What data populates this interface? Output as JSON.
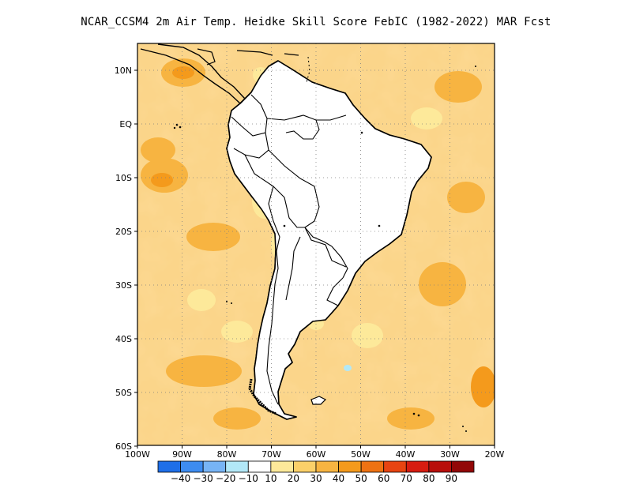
{
  "title": "NCAR_CCSM4  2m Air Temp. Heidke Skill Score FebIC (1982-2022) MAR Fcst",
  "lat_labels": [
    "10N",
    "EQ",
    "10S",
    "20S",
    "30S",
    "40S",
    "50S",
    "60S"
  ],
  "lon_labels": [
    "100W",
    "90W",
    "80W",
    "70W",
    "60W",
    "50W",
    "40W",
    "30W",
    "20W"
  ],
  "colorbar": {
    "labels": [
      "-40",
      "-30",
      "-20",
      "-10",
      "10",
      "20",
      "30",
      "40",
      "50",
      "60",
      "70",
      "80",
      "90"
    ],
    "colors": [
      "#1f6fe8",
      "#3d8cf0",
      "#77b4f5",
      "#b2e8f7",
      "#ffffff",
      "#fde99a",
      "#fbd069",
      "#f7b441",
      "#f49a1c",
      "#ee7212",
      "#e74411",
      "#d71c10",
      "#b80f0b",
      "#920707"
    ]
  },
  "land_color": "#ffffff",
  "ocean_color": "#fbd58a"
}
